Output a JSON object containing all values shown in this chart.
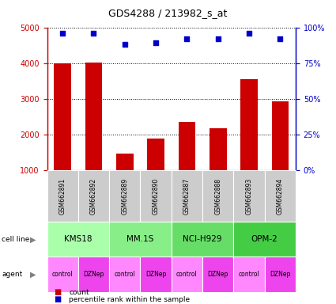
{
  "title": "GDS4288 / 213982_s_at",
  "samples": [
    "GSM662891",
    "GSM662892",
    "GSM662889",
    "GSM662890",
    "GSM662887",
    "GSM662888",
    "GSM662893",
    "GSM662894"
  ],
  "counts": [
    4000,
    4010,
    1460,
    1880,
    2360,
    2170,
    3560,
    2920
  ],
  "percentile_ranks": [
    96,
    96,
    88,
    89,
    92,
    92,
    96,
    92
  ],
  "cell_lines": [
    {
      "label": "KMS18",
      "span": [
        0,
        2
      ]
    },
    {
      "label": "MM.1S",
      "span": [
        2,
        4
      ]
    },
    {
      "label": "NCI-H929",
      "span": [
        4,
        6
      ]
    },
    {
      "label": "OPM-2",
      "span": [
        6,
        8
      ]
    }
  ],
  "cell_line_colors": [
    "#aaffaa",
    "#88ee88",
    "#66dd66",
    "#44cc44"
  ],
  "agents": [
    "control",
    "DZNep",
    "control",
    "DZNep",
    "control",
    "DZNep",
    "control",
    "DZNep"
  ],
  "agent_control_color": "#ff88ff",
  "agent_dznep_color": "#ee44ee",
  "bar_color": "#cc0000",
  "dot_color": "#0000cc",
  "ylim_left": [
    1000,
    5000
  ],
  "ylim_right": [
    0,
    100
  ],
  "yticks_left": [
    1000,
    2000,
    3000,
    4000,
    5000
  ],
  "yticks_right": [
    0,
    25,
    50,
    75,
    100
  ],
  "left_axis_color": "#cc0000",
  "right_axis_color": "#0000cc",
  "gsm_bg": "#cccccc"
}
